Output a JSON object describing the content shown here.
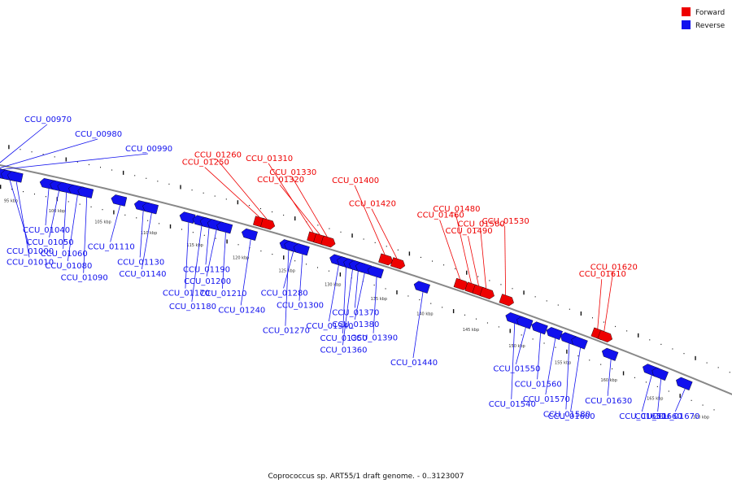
{
  "title": "Coprococcus sp. ART55/1 draft genome. - 0..3123007",
  "legend": [
    {
      "label": "Forward",
      "color": "#ee0000"
    },
    {
      "label": "Reverse",
      "color": "#1111ee"
    }
  ],
  "colors": {
    "forward": "#ee0000",
    "reverse": "#1111ee",
    "backbone": "#888888"
  },
  "kbp_markers": [
    "95 kbp",
    "100 kbp",
    "105 kbp",
    "110 kbp",
    "115 kbp",
    "120 kbp",
    "125 kbp",
    "130 kbp",
    "135 kbp",
    "140 kbp",
    "145 kbp",
    "150 kbp",
    "155 kbp",
    "160 kbp",
    "165 kbp",
    "170 kbp"
  ],
  "genes": [
    {
      "name": "CCU_00970",
      "strand": "reverse",
      "pos_kbp": 92.6
    },
    {
      "name": "CCU_00980",
      "strand": "reverse",
      "pos_kbp": 93.1
    },
    {
      "name": "CCU_00990",
      "strand": "reverse",
      "pos_kbp": 93.6
    },
    {
      "name": "CCU_01000",
      "strand": "reverse",
      "pos_kbp": 94.3
    },
    {
      "name": "CCU_01010",
      "strand": "reverse",
      "pos_kbp": 95.0
    },
    {
      "name": "CCU_01040",
      "strand": "reverse",
      "pos_kbp": 98.5
    },
    {
      "name": "CCU_01050",
      "strand": "reverse",
      "pos_kbp": 99.6
    },
    {
      "name": "CCU_01060",
      "strand": "reverse",
      "pos_kbp": 100.4
    },
    {
      "name": "CCU_01080",
      "strand": "reverse",
      "pos_kbp": 101.6
    },
    {
      "name": "CCU_01090",
      "strand": "reverse",
      "pos_kbp": 102.6
    },
    {
      "name": "CCU_01110",
      "strand": "reverse",
      "pos_kbp": 106.2
    },
    {
      "name": "CCU_01130",
      "strand": "reverse",
      "pos_kbp": 108.7
    },
    {
      "name": "CCU_01140",
      "strand": "reverse",
      "pos_kbp": 109.6
    },
    {
      "name": "CCU_01170",
      "strand": "reverse",
      "pos_kbp": 113.6
    },
    {
      "name": "CCU_01180",
      "strand": "reverse",
      "pos_kbp": 115.0
    },
    {
      "name": "CCU_01190",
      "strand": "reverse",
      "pos_kbp": 115.8
    },
    {
      "name": "CCU_01200",
      "strand": "reverse",
      "pos_kbp": 116.6
    },
    {
      "name": "CCU_01210",
      "strand": "reverse",
      "pos_kbp": 117.6
    },
    {
      "name": "CCU_01240",
      "strand": "reverse",
      "pos_kbp": 120.3
    },
    {
      "name": "CCU_01250",
      "strand": "forward",
      "pos_kbp": 120.8
    },
    {
      "name": "CCU_01260",
      "strand": "forward",
      "pos_kbp": 121.6
    },
    {
      "name": "CCU_01270",
      "strand": "reverse",
      "pos_kbp": 124.4
    },
    {
      "name": "CCU_01280",
      "strand": "reverse",
      "pos_kbp": 124.9
    },
    {
      "name": "CCU_01300",
      "strand": "reverse",
      "pos_kbp": 125.9
    },
    {
      "name": "CCU_01310",
      "strand": "forward",
      "pos_kbp": 126.6
    },
    {
      "name": "CCU_01320",
      "strand": "forward",
      "pos_kbp": 127.3
    },
    {
      "name": "CCU_01330",
      "strand": "forward",
      "pos_kbp": 128.1
    },
    {
      "name": "CCU_01340",
      "strand": "reverse",
      "pos_kbp": 129.8
    },
    {
      "name": "CCU_01350",
      "strand": "reverse",
      "pos_kbp": 130.6
    },
    {
      "name": "CCU_01360",
      "strand": "reverse",
      "pos_kbp": 131.3
    },
    {
      "name": "CCU_01370",
      "strand": "reverse",
      "pos_kbp": 131.9
    },
    {
      "name": "CCU_01380",
      "strand": "reverse",
      "pos_kbp": 132.6
    },
    {
      "name": "CCU_01390",
      "strand": "reverse",
      "pos_kbp": 133.9
    },
    {
      "name": "CCU_01400",
      "strand": "forward",
      "pos_kbp": 134.3
    },
    {
      "name": "CCU_01420",
      "strand": "forward",
      "pos_kbp": 135.6
    },
    {
      "name": "CCU_01440",
      "strand": "reverse",
      "pos_kbp": 138.9
    },
    {
      "name": "CCU_01460",
      "strand": "forward",
      "pos_kbp": 142.4
    },
    {
      "name": "CCU_01480",
      "strand": "forward",
      "pos_kbp": 143.6
    },
    {
      "name": "CCU_01490",
      "strand": "forward",
      "pos_kbp": 144.4
    },
    {
      "name": "CCU_01500",
      "strand": "forward",
      "pos_kbp": 145.2
    },
    {
      "name": "CCU_01530",
      "strand": "forward",
      "pos_kbp": 147.3
    },
    {
      "name": "CCU_01540",
      "strand": "reverse",
      "pos_kbp": 148.8
    },
    {
      "name": "CCU_01550",
      "strand": "reverse",
      "pos_kbp": 150.0
    },
    {
      "name": "CCU_01560",
      "strand": "reverse",
      "pos_kbp": 151.6
    },
    {
      "name": "CCU_01570",
      "strand": "reverse",
      "pos_kbp": 153.2
    },
    {
      "name": "CCU_01580",
      "strand": "reverse",
      "pos_kbp": 154.7
    },
    {
      "name": "CCU_01600",
      "strand": "reverse",
      "pos_kbp": 155.9
    },
    {
      "name": "CCU_01610",
      "strand": "forward",
      "pos_kbp": 157.2
    },
    {
      "name": "CCU_01620",
      "strand": "forward",
      "pos_kbp": 157.9
    },
    {
      "name": "CCU_01630",
      "strand": "reverse",
      "pos_kbp": 159.2
    },
    {
      "name": "CCU_01650",
      "strand": "reverse",
      "pos_kbp": 163.6
    },
    {
      "name": "CCU_01660",
      "strand": "reverse",
      "pos_kbp": 164.6
    },
    {
      "name": "CCU_01670",
      "strand": "reverse",
      "pos_kbp": 167.2
    }
  ]
}
